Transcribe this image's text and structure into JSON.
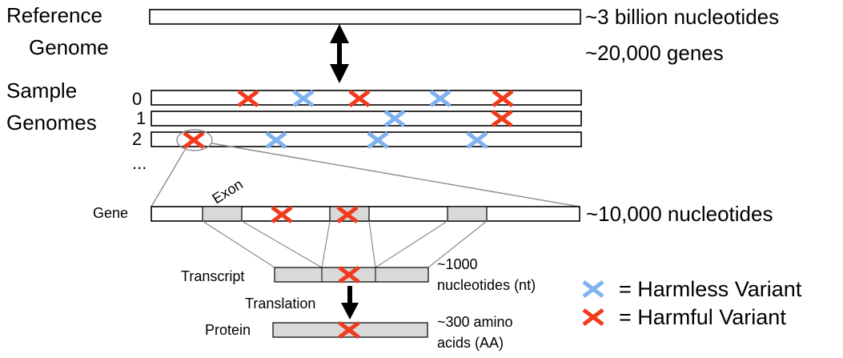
{
  "labels": {
    "reference_line1": "Reference",
    "reference_line2": "Genome",
    "sample_line1": "Sample",
    "sample_line2": "Genomes",
    "row0": "0",
    "row1": "1",
    "row2": "2",
    "ellipsis": "...",
    "exon": "Exon",
    "gene": "Gene",
    "transcript": "Transcript",
    "translation": "Translation",
    "protein": "Protein"
  },
  "annotations": {
    "ref_size": "~3 billion nucleotides",
    "gene_count": "~20,000 genes",
    "gene_size": "~10,000 nucleotides",
    "transcript_size_line1": "~1000",
    "transcript_size_line2": "nucleotides (nt)",
    "protein_size_line1": "~300 amino",
    "protein_size_line2": "acids (AA)"
  },
  "legend": {
    "harmless": "= Harmless Variant",
    "harmful": "= Harmful Variant"
  },
  "colors": {
    "harmful": "#f23a1c",
    "harmless": "#7fb2ef",
    "exon": "#d9d9d9"
  }
}
